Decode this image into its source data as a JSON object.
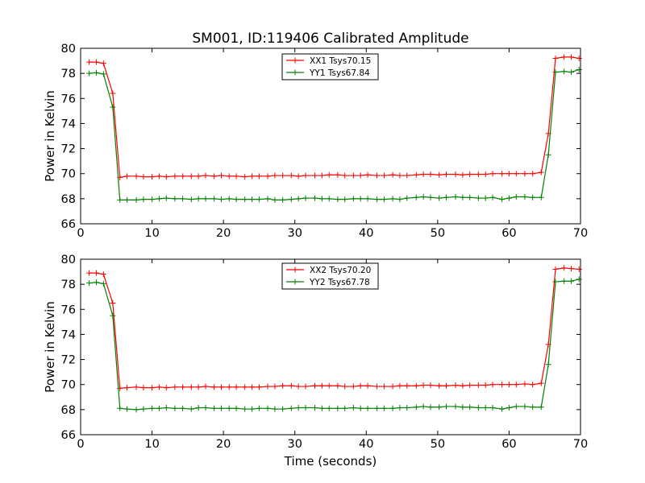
{
  "figure": {
    "title": "SM001, ID:119406 Calibrated Amplitude",
    "xlabel": "Time (seconds)"
  },
  "chart_data": [
    {
      "type": "line",
      "ylabel": "Power in Kelvin",
      "xlim": [
        0,
        70
      ],
      "ylim": [
        66,
        80
      ],
      "xticks": [
        0,
        10,
        20,
        30,
        40,
        50,
        60,
        70
      ],
      "yticks": [
        66,
        68,
        70,
        72,
        74,
        76,
        78,
        80
      ],
      "grid": false,
      "legend_position": "top-center",
      "series": [
        {
          "name": "XX1 Tsys70.15",
          "color": "#ff0000",
          "marker": "plus",
          "x": [
            1.2,
            2.2,
            3.2,
            4.5,
            5.5,
            6.5,
            7.8,
            8.8,
            10.0,
            11.0,
            12.0,
            13.2,
            14.3,
            15.5,
            16.5,
            17.5,
            18.7,
            19.7,
            20.8,
            21.8,
            23.0,
            24.0,
            25.0,
            26.2,
            27.2,
            28.3,
            29.5,
            30.5,
            31.5,
            32.8,
            33.8,
            34.8,
            36.0,
            37.0,
            38.2,
            39.2,
            40.2,
            41.5,
            42.5,
            43.7,
            44.7,
            45.7,
            47.0,
            48.0,
            49.0,
            50.2,
            51.2,
            52.5,
            53.5,
            54.5,
            55.7,
            56.7,
            57.7,
            59.0,
            60.0,
            61.0,
            62.2,
            63.3,
            64.5,
            65.5,
            66.5,
            67.7,
            68.7,
            69.8
          ],
          "y": [
            78.9,
            78.9,
            78.8,
            76.4,
            69.7,
            69.8,
            69.8,
            69.75,
            69.75,
            69.8,
            69.75,
            69.8,
            69.8,
            69.8,
            69.8,
            69.85,
            69.8,
            69.85,
            69.8,
            69.8,
            69.75,
            69.8,
            69.8,
            69.8,
            69.85,
            69.85,
            69.85,
            69.8,
            69.85,
            69.85,
            69.85,
            69.9,
            69.9,
            69.85,
            69.85,
            69.85,
            69.9,
            69.85,
            69.85,
            69.9,
            69.85,
            69.85,
            69.9,
            69.95,
            69.95,
            69.9,
            69.95,
            69.95,
            69.9,
            69.95,
            69.95,
            69.95,
            70.0,
            70.0,
            70.0,
            70.0,
            70.0,
            70.0,
            70.1,
            73.2,
            79.2,
            79.3,
            79.3,
            79.2
          ]
        },
        {
          "name": "YY1 Tsys67.84",
          "color": "#008000",
          "marker": "plus",
          "x": [
            1.2,
            2.2,
            3.2,
            4.5,
            5.5,
            6.5,
            7.8,
            8.8,
            10.0,
            11.0,
            12.0,
            13.2,
            14.3,
            15.5,
            16.5,
            17.5,
            18.7,
            19.7,
            20.8,
            21.8,
            23.0,
            24.0,
            25.0,
            26.2,
            27.2,
            28.3,
            29.5,
            30.5,
            31.5,
            32.8,
            33.8,
            34.8,
            36.0,
            37.0,
            38.2,
            39.2,
            40.2,
            41.5,
            42.5,
            43.7,
            44.7,
            45.7,
            47.0,
            48.0,
            49.0,
            50.2,
            51.2,
            52.5,
            53.5,
            54.5,
            55.7,
            56.7,
            57.7,
            59.0,
            60.0,
            61.0,
            62.2,
            63.3,
            64.5,
            65.5,
            66.5,
            67.7,
            68.7,
            69.8
          ],
          "y": [
            78.0,
            78.05,
            77.95,
            75.3,
            67.9,
            67.9,
            67.9,
            67.95,
            67.95,
            68.0,
            68.05,
            68.0,
            68.0,
            67.95,
            68.0,
            68.0,
            68.0,
            67.95,
            68.0,
            67.95,
            67.95,
            67.95,
            67.95,
            68.0,
            67.9,
            67.9,
            67.95,
            68.0,
            68.05,
            68.05,
            68.0,
            68.0,
            67.95,
            67.95,
            68.0,
            68.0,
            68.0,
            67.95,
            67.95,
            68.0,
            67.95,
            68.05,
            68.1,
            68.15,
            68.1,
            68.05,
            68.1,
            68.15,
            68.1,
            68.1,
            68.05,
            68.05,
            68.1,
            67.95,
            68.05,
            68.15,
            68.15,
            68.1,
            68.1,
            71.5,
            78.1,
            78.15,
            78.1,
            78.3
          ]
        }
      ]
    },
    {
      "type": "line",
      "ylabel": "Power in Kelvin",
      "xlim": [
        0,
        70
      ],
      "ylim": [
        66,
        80
      ],
      "xticks": [
        0,
        10,
        20,
        30,
        40,
        50,
        60,
        70
      ],
      "yticks": [
        66,
        68,
        70,
        72,
        74,
        76,
        78,
        80
      ],
      "grid": false,
      "legend_position": "top-center",
      "series": [
        {
          "name": "XX2 Tsys70.20",
          "color": "#ff0000",
          "marker": "plus",
          "x": [
            1.2,
            2.2,
            3.2,
            4.5,
            5.5,
            6.5,
            7.8,
            8.8,
            10.0,
            11.0,
            12.0,
            13.2,
            14.3,
            15.5,
            16.5,
            17.5,
            18.7,
            19.7,
            20.8,
            21.8,
            23.0,
            24.0,
            25.0,
            26.2,
            27.2,
            28.3,
            29.5,
            30.5,
            31.5,
            32.8,
            33.8,
            34.8,
            36.0,
            37.0,
            38.2,
            39.2,
            40.2,
            41.5,
            42.5,
            43.7,
            44.7,
            45.7,
            47.0,
            48.0,
            49.0,
            50.2,
            51.2,
            52.5,
            53.5,
            54.5,
            55.7,
            56.7,
            57.7,
            59.0,
            60.0,
            61.0,
            62.2,
            63.3,
            64.5,
            65.5,
            66.5,
            67.7,
            68.7,
            69.8
          ],
          "y": [
            78.9,
            78.9,
            78.8,
            76.5,
            69.7,
            69.75,
            69.8,
            69.75,
            69.75,
            69.8,
            69.75,
            69.8,
            69.8,
            69.8,
            69.8,
            69.85,
            69.8,
            69.8,
            69.8,
            69.8,
            69.8,
            69.8,
            69.8,
            69.85,
            69.85,
            69.9,
            69.9,
            69.85,
            69.85,
            69.9,
            69.9,
            69.9,
            69.9,
            69.85,
            69.85,
            69.9,
            69.9,
            69.85,
            69.85,
            69.85,
            69.9,
            69.9,
            69.9,
            69.95,
            69.95,
            69.9,
            69.9,
            69.95,
            69.9,
            69.95,
            69.95,
            69.95,
            70.0,
            70.0,
            70.0,
            70.0,
            70.05,
            70.0,
            70.1,
            73.2,
            79.2,
            79.3,
            79.25,
            79.2
          ]
        },
        {
          "name": "YY2 Tsys67.78",
          "color": "#008000",
          "marker": "plus",
          "x": [
            1.2,
            2.2,
            3.2,
            4.5,
            5.5,
            6.5,
            7.8,
            8.8,
            10.0,
            11.0,
            12.0,
            13.2,
            14.3,
            15.5,
            16.5,
            17.5,
            18.7,
            19.7,
            20.8,
            21.8,
            23.0,
            24.0,
            25.0,
            26.2,
            27.2,
            28.3,
            29.5,
            30.5,
            31.5,
            32.8,
            33.8,
            34.8,
            36.0,
            37.0,
            38.2,
            39.2,
            40.2,
            41.5,
            42.5,
            43.7,
            44.7,
            45.7,
            47.0,
            48.0,
            49.0,
            50.2,
            51.2,
            52.5,
            53.5,
            54.5,
            55.7,
            56.7,
            57.7,
            59.0,
            60.0,
            61.0,
            62.2,
            63.3,
            64.5,
            65.5,
            66.5,
            67.7,
            68.7,
            69.8
          ],
          "y": [
            78.1,
            78.15,
            78.05,
            75.5,
            68.1,
            68.05,
            68.0,
            68.05,
            68.1,
            68.1,
            68.15,
            68.1,
            68.1,
            68.05,
            68.15,
            68.15,
            68.1,
            68.1,
            68.1,
            68.1,
            68.05,
            68.05,
            68.1,
            68.1,
            68.05,
            68.05,
            68.1,
            68.15,
            68.15,
            68.15,
            68.1,
            68.1,
            68.1,
            68.1,
            68.15,
            68.1,
            68.1,
            68.1,
            68.1,
            68.1,
            68.15,
            68.15,
            68.2,
            68.25,
            68.2,
            68.2,
            68.25,
            68.25,
            68.2,
            68.2,
            68.15,
            68.15,
            68.15,
            68.05,
            68.15,
            68.25,
            68.25,
            68.2,
            68.2,
            71.6,
            78.2,
            78.25,
            78.25,
            78.4
          ]
        }
      ]
    }
  ]
}
